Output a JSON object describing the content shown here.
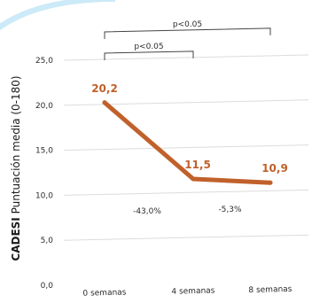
{
  "chart_data": {
    "type": "line",
    "x": [
      "0 semanas",
      "4 semanas",
      "8 semanas"
    ],
    "series": [
      {
        "name": "",
        "values": [
          20.2,
          11.5,
          10.9
        ],
        "labels": [
          "20,2",
          "11,5",
          "10,9"
        ]
      }
    ],
    "ylabel_bold": "CADESI",
    "ylabel_rest": " Puntuación media (0-180)",
    "ylim": [
      0,
      25
    ],
    "yticks": [
      0,
      5,
      10,
      15,
      20,
      25
    ],
    "ytick_labels": [
      "0,0",
      "5,0",
      "10,0",
      "15,0",
      "20,0",
      "25,0"
    ],
    "grid": true,
    "change_labels": [
      "-43,0%",
      "-5,3%"
    ],
    "significance": [
      {
        "from": 0,
        "to": 2,
        "label": "p<0.05"
      },
      {
        "from": 0,
        "to": 1,
        "label": "p<0.05"
      }
    ],
    "colors": {
      "line": "#c0612b",
      "grid": "#dcdcdc",
      "bracket": "#444444",
      "accent": "#8fd0ee"
    }
  }
}
